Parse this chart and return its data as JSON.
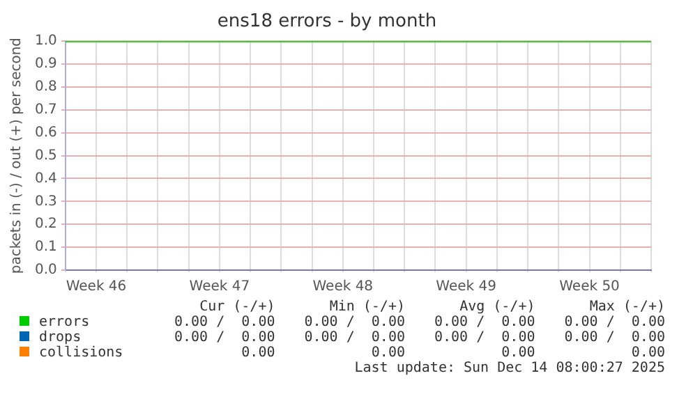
{
  "chart_data": {
    "type": "line",
    "title": "ens18 errors - by month",
    "ylabel": "packets in (-) / out (+) per second",
    "categories": [
      null,
      "Week 46",
      null,
      null,
      null,
      "Week 47",
      null,
      null,
      null,
      "Week 48",
      null,
      null,
      null,
      "Week 49",
      null,
      null,
      null,
      "Week 50",
      null,
      null
    ],
    "ylim": [
      0,
      1
    ],
    "yticks": [
      {
        "value": 0,
        "label": "0.0"
      },
      {
        "value": 0.1,
        "label": "0.1"
      },
      {
        "value": 0.2,
        "label": "0.2"
      },
      {
        "value": 0.3,
        "label": "0.3"
      },
      {
        "value": 0.4,
        "label": "0.4"
      },
      {
        "value": 0.5,
        "label": "0.5"
      },
      {
        "value": 0.6,
        "label": "0.6"
      },
      {
        "value": 0.7,
        "label": "0.7"
      },
      {
        "value": 0.8,
        "label": "0.8"
      },
      {
        "value": 0.9,
        "label": "0.9"
      },
      {
        "value": 1,
        "label": "1.0"
      }
    ],
    "grid": true,
    "legend": "bottom",
    "marker": "none",
    "line_style": "solid",
    "series": [
      {
        "name": "errors",
        "color": "#00cc00",
        "values": [
          1,
          1,
          1,
          1,
          1,
          1,
          1,
          1,
          1,
          1,
          1,
          1,
          1,
          1,
          1,
          1,
          1,
          1,
          1,
          1
        ]
      },
      {
        "name": "drops",
        "color": "#0066b3",
        "values": [
          null,
          null,
          null,
          null,
          null,
          null,
          null,
          null,
          null,
          null,
          null,
          null,
          null,
          null,
          null,
          null,
          null,
          null,
          null,
          null
        ]
      },
      {
        "name": "collisions",
        "color": "#ff8000",
        "values": [
          null,
          null,
          null,
          null,
          null,
          null,
          null,
          null,
          null,
          null,
          null,
          null,
          null,
          null,
          null,
          null,
          null,
          null,
          null,
          null
        ]
      }
    ],
    "annotations": [
      "Cur (-/+)",
      "Min (-/+)",
      "Avg (-/+)",
      "Max (-/+)",
      "0.00 /  0.00",
      "0.00 /  0.00",
      "0.00 /  0.00",
      "0.00 /  0.00",
      "0.00 /  0.00",
      "0.00 /  0.00",
      "0.00 /  0.00",
      "0.00 /  0.00",
      "0.00",
      "0.00",
      "0.00",
      "0.00",
      "Last update: Sun Dec 14 08:00:27 2025"
    ]
  }
}
